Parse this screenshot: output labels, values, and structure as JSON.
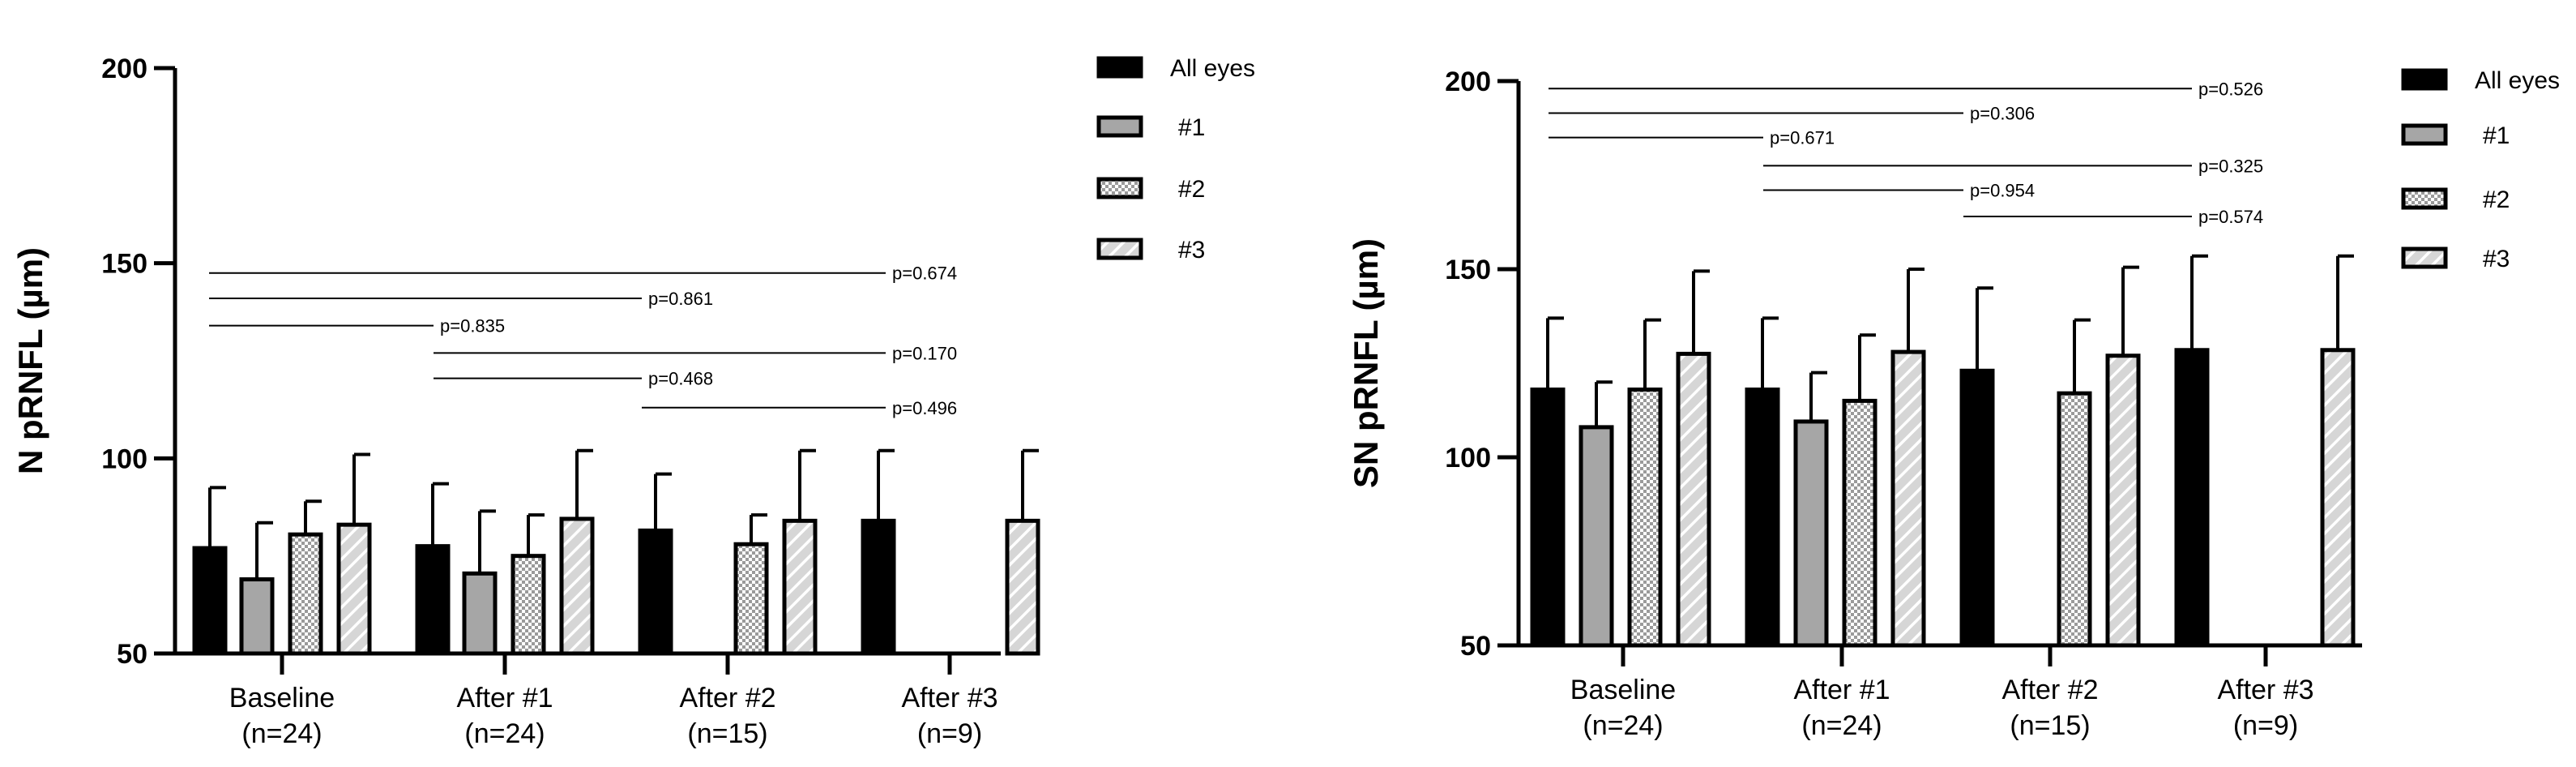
{
  "chart_data": [
    {
      "type": "bar",
      "ylabel": "N pRNFL (µm)",
      "ylim": [
        50,
        200
      ],
      "yticks": [
        50,
        100,
        150,
        200
      ],
      "categories": [
        "Baseline\n(n=24)",
        "After #1\n(n=24)",
        "After #2\n(n=15)",
        "After #3\n(n=9)"
      ],
      "series": [
        {
          "name": "All eyes",
          "pattern": "solid-black",
          "values": [
            77,
            77.5,
            81.5,
            84
          ],
          "errors": [
            15.5,
            16,
            14.5,
            18
          ]
        },
        {
          "name": "#1",
          "pattern": "gray",
          "values": [
            69,
            70.5,
            null,
            null
          ],
          "errors": [
            14.5,
            16,
            null,
            null
          ]
        },
        {
          "name": "#2",
          "pattern": "checker",
          "values": [
            80.5,
            75,
            78,
            null
          ],
          "errors": [
            8.5,
            10.5,
            7.5,
            null
          ]
        },
        {
          "name": "#3",
          "pattern": "diagonal-hatch",
          "values": [
            83,
            84.5,
            84,
            84
          ],
          "errors": [
            18,
            17.5,
            18,
            18
          ]
        }
      ],
      "comparisons": [
        {
          "from": 0,
          "to": 3,
          "label": "p=0.674",
          "y": 147.5
        },
        {
          "from": 0,
          "to": 2,
          "label": "p=0.861",
          "y": 141
        },
        {
          "from": 0,
          "to": 1,
          "label": "p=0.835",
          "y": 134
        },
        {
          "from": 1,
          "to": 3,
          "label": "p=0.170",
          "y": 127
        },
        {
          "from": 1,
          "to": 2,
          "label": "p=0.468",
          "y": 120.5
        },
        {
          "from": 2,
          "to": 3,
          "label": "p=0.496",
          "y": 113
        }
      ],
      "legend_position": "top-right"
    },
    {
      "type": "bar",
      "ylabel": "SN pRNFL (µm)",
      "ylim": [
        50,
        200
      ],
      "yticks": [
        50,
        100,
        150,
        200
      ],
      "categories": [
        "Baseline\n(n=24)",
        "After #1\n(n=24)",
        "After #2\n(n=15)",
        "After #3\n(n=9)"
      ],
      "series": [
        {
          "name": "All eyes",
          "pattern": "solid-black",
          "values": [
            118,
            118,
            123,
            128.5
          ],
          "errors": [
            19,
            19,
            22,
            25
          ]
        },
        {
          "name": "#1",
          "pattern": "gray",
          "values": [
            108,
            109.5,
            null,
            null
          ],
          "errors": [
            12,
            13,
            null,
            null
          ]
        },
        {
          "name": "#2",
          "pattern": "checker",
          "values": [
            118,
            115,
            117,
            null
          ],
          "errors": [
            18.5,
            17.5,
            19.5,
            null
          ]
        },
        {
          "name": "#3",
          "pattern": "diagonal-hatch",
          "values": [
            127.5,
            128,
            127,
            128.5
          ],
          "errors": [
            22,
            22,
            23.5,
            25
          ]
        }
      ],
      "comparisons": [
        {
          "from": 0,
          "to": 3,
          "label": "p=0.526",
          "y": 198
        },
        {
          "from": 0,
          "to": 2,
          "label": "p=0.306",
          "y": 191.5
        },
        {
          "from": 0,
          "to": 1,
          "label": "p=0.671",
          "y": 185
        },
        {
          "from": 1,
          "to": 3,
          "label": "p=0.325",
          "y": 177.5
        },
        {
          "from": 1,
          "to": 2,
          "label": "p=0.954",
          "y": 171
        },
        {
          "from": 2,
          "to": 3,
          "label": "p=0.574",
          "y": 164
        }
      ],
      "legend_position": "top-right"
    }
  ]
}
